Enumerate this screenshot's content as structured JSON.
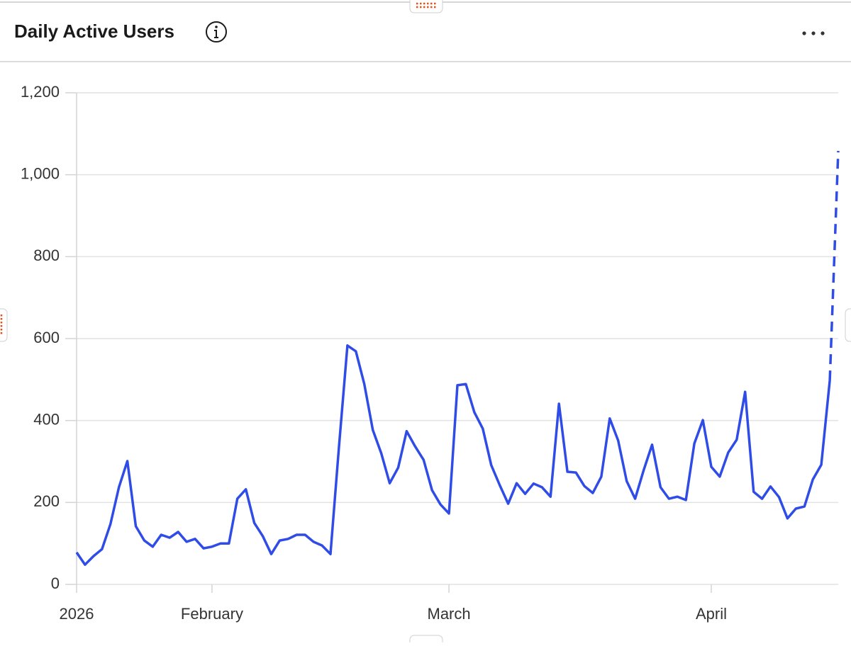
{
  "chart_data": {
    "type": "line",
    "title": "Daily Active Users",
    "categories": [
      "2026",
      null,
      null,
      null,
      null,
      null,
      null,
      null,
      null,
      null,
      null,
      null,
      null,
      null,
      null,
      null,
      "February",
      null,
      null,
      null,
      null,
      null,
      null,
      null,
      null,
      null,
      null,
      null,
      null,
      null,
      null,
      null,
      null,
      null,
      null,
      null,
      null,
      null,
      null,
      null,
      null,
      null,
      null,
      null,
      "March",
      null,
      null,
      null,
      null,
      null,
      null,
      null,
      null,
      null,
      null,
      null,
      null,
      null,
      null,
      null,
      null,
      null,
      null,
      null,
      null,
      null,
      null,
      null,
      null,
      null,
      null,
      null,
      null,
      null,
      null,
      "April",
      null,
      null,
      null,
      null,
      null,
      null,
      null,
      null,
      null,
      null,
      null,
      null,
      null,
      null,
      null
    ],
    "series": [
      {
        "name": "Daily Active Users",
        "color": "#2f4ce6",
        "values": [
          78,
          48,
          69,
          86,
          147,
          237,
          301,
          142,
          107,
          92,
          121,
          114,
          128,
          104,
          111,
          88,
          92,
          100,
          100,
          209,
          232,
          150,
          118,
          74,
          107,
          111,
          121,
          121,
          104,
          95,
          74,
          334,
          583,
          569,
          489,
          377,
          320,
          247,
          285,
          374,
          337,
          304,
          230,
          195,
          173,
          486,
          489,
          420,
          380,
          291,
          242,
          197,
          247,
          221,
          246,
          237,
          214,
          441,
          275,
          273,
          240,
          223,
          263,
          405,
          351,
          252,
          209,
          278,
          341,
          237,
          209,
          214,
          206,
          344,
          401,
          287,
          263,
          322,
          353,
          470,
          226,
          209,
          239,
          213,
          161,
          185,
          190,
          256,
          292,
          498,
          1058
        ]
      }
    ],
    "last_segment_dashed": true,
    "ylim": [
      0,
      1200
    ],
    "yticks": [
      0,
      200,
      400,
      600,
      800,
      {
        "value": 1000,
        "label": "1,000"
      },
      {
        "value": 1200,
        "label": "1,200"
      }
    ],
    "grid": true
  }
}
